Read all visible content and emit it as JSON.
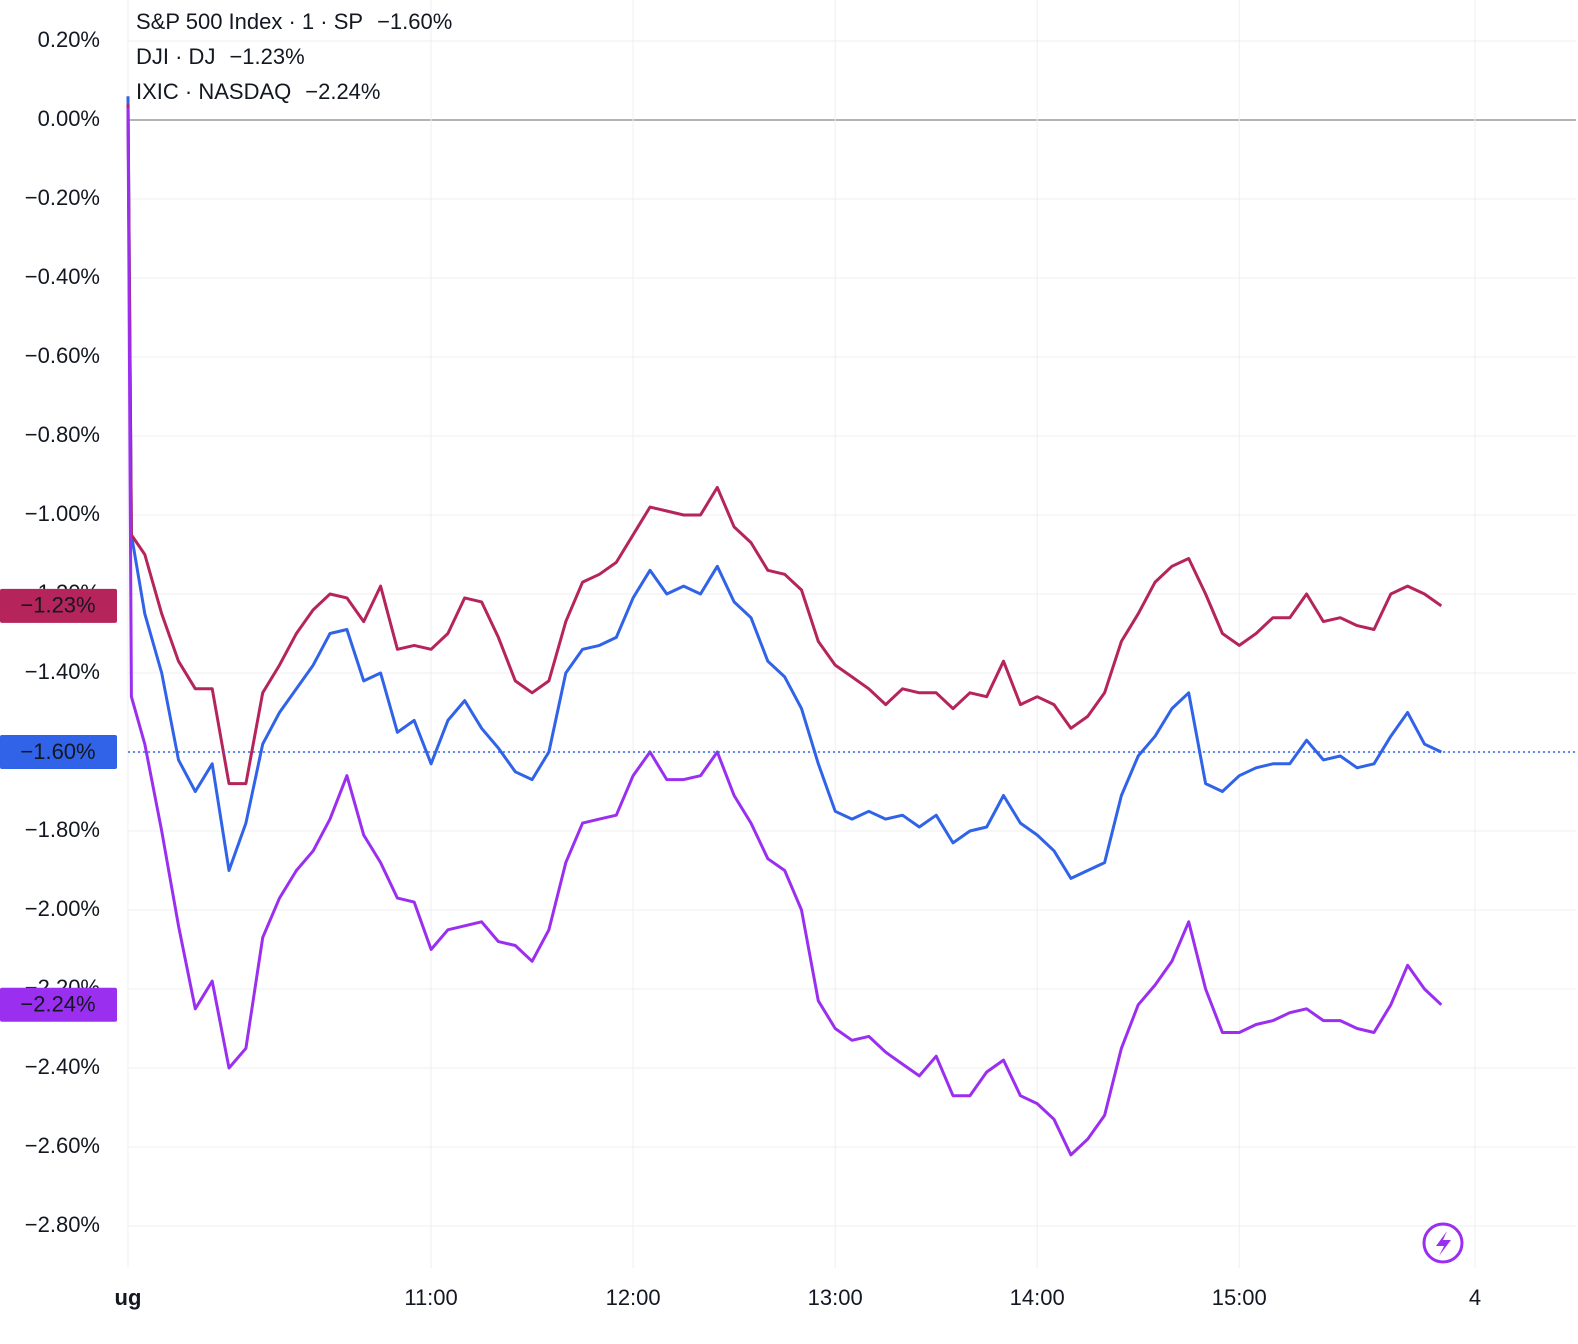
{
  "chart_data": {
    "type": "line",
    "x": [
      570,
      571,
      575,
      580,
      585,
      590,
      595,
      600,
      605,
      610,
      615,
      620,
      625,
      630,
      635,
      640,
      645,
      650,
      655,
      660,
      665,
      670,
      675,
      680,
      685,
      690,
      695,
      700,
      705,
      710,
      715,
      720,
      725,
      730,
      735,
      740,
      745,
      750,
      755,
      760,
      765,
      770,
      775,
      780,
      785,
      790,
      795,
      800,
      805,
      810,
      815,
      820,
      825,
      830,
      835,
      840,
      845,
      850,
      855,
      860,
      865,
      870,
      875,
      880,
      885,
      890,
      895,
      900,
      905,
      910,
      915,
      920,
      925,
      930,
      935,
      940,
      945,
      950,
      955,
      960
    ],
    "series": [
      {
        "name": "S&P 500 Index · 1 · SP",
        "color": "#3163e8",
        "last_value_label": "−1.60%",
        "values": [
          0.06,
          -1.05,
          -1.25,
          -1.4,
          -1.62,
          -1.7,
          -1.63,
          -1.9,
          -1.78,
          -1.58,
          -1.5,
          -1.44,
          -1.38,
          -1.3,
          -1.29,
          -1.42,
          -1.4,
          -1.55,
          -1.52,
          -1.63,
          -1.52,
          -1.47,
          -1.54,
          -1.59,
          -1.65,
          -1.67,
          -1.6,
          -1.4,
          -1.34,
          -1.33,
          -1.31,
          -1.21,
          -1.14,
          -1.2,
          -1.18,
          -1.2,
          -1.13,
          -1.22,
          -1.26,
          -1.37,
          -1.41,
          -1.49,
          -1.63,
          -1.75,
          -1.77,
          -1.75,
          -1.77,
          -1.76,
          -1.79,
          -1.76,
          -1.83,
          -1.8,
          -1.79,
          -1.71,
          -1.78,
          -1.81,
          -1.85,
          -1.92,
          -1.9,
          -1.88,
          -1.71,
          -1.61,
          -1.56,
          -1.49,
          -1.45,
          -1.68,
          -1.7,
          -1.66,
          -1.64,
          -1.63,
          -1.63,
          -1.57,
          -1.62,
          -1.61,
          -1.64,
          -1.63,
          -1.56,
          -1.5,
          -1.58,
          -1.6
        ]
      },
      {
        "name": "DJI · DJ",
        "color": "#b5245a",
        "last_value_label": "−1.23%",
        "values": [
          0.04,
          -1.05,
          -1.1,
          -1.25,
          -1.37,
          -1.44,
          -1.44,
          -1.68,
          -1.68,
          -1.45,
          -1.38,
          -1.3,
          -1.24,
          -1.2,
          -1.21,
          -1.27,
          -1.18,
          -1.34,
          -1.33,
          -1.34,
          -1.3,
          -1.21,
          -1.22,
          -1.31,
          -1.42,
          -1.45,
          -1.42,
          -1.27,
          -1.17,
          -1.15,
          -1.12,
          -1.05,
          -0.98,
          -0.99,
          -1.0,
          -1.0,
          -0.93,
          -1.03,
          -1.07,
          -1.14,
          -1.15,
          -1.19,
          -1.32,
          -1.38,
          -1.41,
          -1.44,
          -1.48,
          -1.44,
          -1.45,
          -1.45,
          -1.49,
          -1.45,
          -1.46,
          -1.37,
          -1.48,
          -1.46,
          -1.48,
          -1.54,
          -1.51,
          -1.45,
          -1.32,
          -1.25,
          -1.17,
          -1.13,
          -1.11,
          -1.2,
          -1.3,
          -1.33,
          -1.3,
          -1.26,
          -1.26,
          -1.2,
          -1.27,
          -1.26,
          -1.28,
          -1.29,
          -1.2,
          -1.18,
          -1.2,
          -1.23
        ]
      },
      {
        "name": "IXIC · NASDAQ",
        "color": "#9b2ff0",
        "last_value_label": "−2.24%",
        "values": [
          0.03,
          -1.46,
          -1.58,
          -1.8,
          -2.04,
          -2.25,
          -2.18,
          -2.4,
          -2.35,
          -2.07,
          -1.97,
          -1.9,
          -1.85,
          -1.77,
          -1.66,
          -1.81,
          -1.88,
          -1.97,
          -1.98,
          -2.1,
          -2.05,
          -2.04,
          -2.03,
          -2.08,
          -2.09,
          -2.13,
          -2.05,
          -1.88,
          -1.78,
          -1.77,
          -1.76,
          -1.66,
          -1.6,
          -1.67,
          -1.67,
          -1.66,
          -1.6,
          -1.71,
          -1.78,
          -1.87,
          -1.9,
          -2.0,
          -2.23,
          -2.3,
          -2.33,
          -2.32,
          -2.36,
          -2.39,
          -2.42,
          -2.37,
          -2.47,
          -2.47,
          -2.41,
          -2.38,
          -2.47,
          -2.49,
          -2.53,
          -2.62,
          -2.58,
          -2.52,
          -2.35,
          -2.24,
          -2.19,
          -2.13,
          -2.03,
          -2.2,
          -2.31,
          -2.31,
          -2.29,
          -2.28,
          -2.26,
          -2.25,
          -2.28,
          -2.28,
          -2.3,
          -2.31,
          -2.24,
          -2.14,
          -2.2,
          -2.24
        ]
      }
    ],
    "xlim": [
      570,
      1000
    ],
    "xticks": [
      {
        "value": 570,
        "label": "ug"
      },
      {
        "value": 660,
        "label": "11:00"
      },
      {
        "value": 720,
        "label": "12:00"
      },
      {
        "value": 780,
        "label": "13:00"
      },
      {
        "value": 840,
        "label": "14:00"
      },
      {
        "value": 900,
        "label": "15:00"
      },
      {
        "value": 970,
        "label": "4"
      }
    ],
    "ylim": [
      -2.9,
      0.3
    ],
    "yticks": [
      {
        "value": 0.2,
        "label": "0.20%"
      },
      {
        "value": 0,
        "label": "0.00%"
      },
      {
        "value": -0.2,
        "label": "−0.20%"
      },
      {
        "value": -0.4,
        "label": "−0.40%"
      },
      {
        "value": -0.6,
        "label": "−0.60%"
      },
      {
        "value": -0.8,
        "label": "−0.80%"
      },
      {
        "value": -1.0,
        "label": "−1.00%"
      },
      {
        "value": -1.2,
        "label": "−1.20%"
      },
      {
        "value": -1.4,
        "label": "−1.40%"
      },
      {
        "value": -1.6,
        "label": "−1.60%"
      },
      {
        "value": -1.8,
        "label": "−1.80%"
      },
      {
        "value": -2.0,
        "label": "−2.00%"
      },
      {
        "value": -2.2,
        "label": "−2.20%"
      },
      {
        "value": -2.4,
        "label": "−2.40%"
      },
      {
        "value": -2.6,
        "label": "−2.60%"
      },
      {
        "value": -2.8,
        "label": "−2.80%"
      }
    ],
    "grid": true
  }
}
